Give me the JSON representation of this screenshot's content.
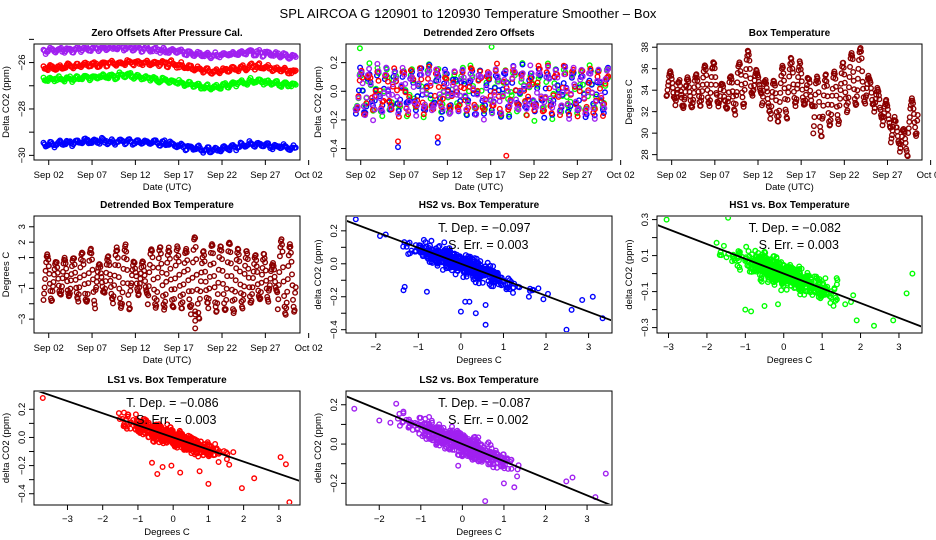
{
  "page": {
    "title": "SPL   AIRCOA G   120901 to 120930   Temperature Smoother – Box"
  },
  "colors": {
    "blue": "#0000ff",
    "red": "#ff0000",
    "green": "#00ff00",
    "purple": "#a020f0",
    "brown": "#8b0000",
    "black": "#000000"
  },
  "chart_data": [
    {
      "id": "zero-offsets",
      "type": "scatter",
      "title": "Zero Offsets After Pressure Cal.",
      "xlabel": "Date (UTC)",
      "ylabel": "Delta CO2 (ppm)",
      "xticks": [
        "Sep 02",
        "Sep 07",
        "Sep 12",
        "Sep 17",
        "Sep 22",
        "Sep 27",
        "Oct 02"
      ],
      "xlim_days": [
        0.3,
        31.0
      ],
      "ylim": [
        -30.2,
        -25.2
      ],
      "yticks": [
        -30,
        -29,
        -28,
        -27,
        -26,
        -25
      ],
      "ytick_labels": [
        "-30",
        "",
        "-28",
        "",
        "-26",
        ""
      ],
      "series": [
        {
          "name": "LS2",
          "color": "purple",
          "level": -25.55,
          "trend": [
            -25.5,
            -25.4,
            -25.35,
            -25.5,
            -25.7,
            -25.55,
            -25.75
          ],
          "noise": 0.12
        },
        {
          "name": "LS1",
          "color": "red",
          "level": -26.2,
          "trend": [
            -26.25,
            -26.1,
            -26.0,
            -26.05,
            -26.4,
            -26.15,
            -26.4
          ],
          "noise": 0.12
        },
        {
          "name": "HS1",
          "color": "green",
          "level": -26.7,
          "trend": [
            -26.75,
            -26.65,
            -26.55,
            -26.8,
            -27.1,
            -26.8,
            -27.0
          ],
          "noise": 0.12
        },
        {
          "name": "HS2",
          "color": "blue",
          "level": -29.5,
          "trend": [
            -29.55,
            -29.4,
            -29.4,
            -29.5,
            -29.8,
            -29.5,
            -29.7
          ],
          "noise": 0.12
        }
      ],
      "x_day_range": [
        1.4,
        30.5
      ]
    },
    {
      "id": "detrended-zero-offsets",
      "type": "scatter",
      "title": "Detrended Zero Offsets",
      "xlabel": "Date (UTC)",
      "ylabel": "Delta CO2 (ppm)",
      "xticks": [
        "Sep 02",
        "Sep 07",
        "Sep 12",
        "Sep 17",
        "Sep 22",
        "Sep 27",
        "Oct 02"
      ],
      "xlim_days": [
        0.3,
        31.0
      ],
      "ylim": [
        -0.48,
        0.33
      ],
      "yticks": [
        -0.4,
        -0.2,
        0.0,
        0.2
      ],
      "ytick_labels": [
        "-0.4",
        "-0.2",
        "0.0",
        "0.2"
      ],
      "series": [
        {
          "name": "HS1",
          "color": "green"
        },
        {
          "name": "HS2",
          "color": "blue"
        },
        {
          "name": "LS1",
          "color": "red"
        },
        {
          "name": "LS2",
          "color": "purple"
        }
      ],
      "amplitude": 0.15,
      "outliers": [
        {
          "day": 18.8,
          "value": -0.45,
          "color": "red"
        },
        {
          "day": 6.3,
          "value": -0.39,
          "color": "blue"
        },
        {
          "day": 6.3,
          "value": -0.35,
          "color": "red"
        },
        {
          "day": 10.9,
          "value": -0.36,
          "color": "blue"
        },
        {
          "day": 10.9,
          "value": -0.32,
          "color": "red"
        },
        {
          "day": 1.9,
          "value": 0.3,
          "color": "green"
        },
        {
          "day": 17.1,
          "value": 0.31,
          "color": "green"
        }
      ],
      "x_day_range": [
        1.4,
        30.5
      ]
    },
    {
      "id": "box-temperature",
      "type": "scatter",
      "title": "Box Temperature",
      "xlabel": "Date (UTC)",
      "ylabel": "Degrees C",
      "xticks": [
        "Sep 02",
        "Sep 07",
        "Sep 12",
        "Sep 17",
        "Sep 22",
        "Sep 27",
        "Oct 02"
      ],
      "xlim_days": [
        0.3,
        31.0
      ],
      "ylim": [
        27.5,
        38.3
      ],
      "yticks": [
        28,
        30,
        32,
        34,
        36,
        38
      ],
      "ytick_labels": [
        "28",
        "30",
        "32",
        "34",
        "36",
        "38"
      ],
      "color": "brown",
      "daily_mean": [
        34.5,
        33.6,
        33.8,
        34.0,
        34.5,
        34.8,
        33.5,
        33.6,
        34.6,
        35.5,
        34.8,
        33.5,
        33.0,
        33.8,
        34.8,
        34.6,
        33.8,
        32.5,
        33.0,
        33.3,
        34.3,
        35.0,
        35.4,
        34.0,
        32.8,
        31.8,
        30.3,
        29.2,
        31.5,
        32.5
      ],
      "daily_amp": [
        1.2,
        1.2,
        1.3,
        1.5,
        1.8,
        1.9,
        1.1,
        1.7,
        2.0,
        2.1,
        1.0,
        1.4,
        2.0,
        2.4,
        2.2,
        1.9,
        1.4,
        2.8,
        2.3,
        2.4,
        2.2,
        2.5,
        2.5,
        1.3,
        1.3,
        1.3,
        1.1,
        1.3,
        1.7,
        1.6
      ],
      "x_day_range": [
        1.4,
        30.5
      ]
    },
    {
      "id": "detrended-box-temperature",
      "type": "scatter",
      "title": "Detrended Box Temperature",
      "xlabel": "Date (UTC)",
      "ylabel": "Degrees C",
      "xticks": [
        "Sep 02",
        "Sep 07",
        "Sep 12",
        "Sep 17",
        "Sep 22",
        "Sep 27",
        "Oct 02"
      ],
      "xlim_days": [
        0.3,
        31.0
      ],
      "ylim": [
        -3.9,
        3.7
      ],
      "yticks": [
        -3,
        -2,
        -1,
        0,
        1,
        2,
        3
      ],
      "ytick_labels": [
        "-3",
        "",
        "-1",
        "",
        "1",
        "2",
        "3"
      ],
      "color": "brown",
      "daily_amp": [
        1.6,
        1.1,
        1.3,
        1.4,
        1.7,
        2.0,
        1.0,
        1.4,
        2.0,
        2.2,
        1.1,
        1.0,
        2.0,
        2.1,
        2.0,
        2.1,
        2.0,
        2.8,
        1.8,
        2.3,
        2.2,
        2.4,
        2.0,
        1.8,
        1.5,
        1.6,
        1.0,
        2.6,
        2.3,
        1.2
      ],
      "outliers": [
        {
          "day": 18.9,
          "value": -2.5
        },
        {
          "day": 18.9,
          "value": -3.1
        },
        {
          "day": 18.9,
          "value": -3.6
        },
        {
          "day": 18.9,
          "value": -2.7
        }
      ],
      "x_day_range": [
        1.4,
        30.5
      ]
    },
    {
      "id": "hs2-vs-box",
      "type": "scatter",
      "title": "HS2 vs. Box Temperature",
      "xlabel": "Degrees C",
      "ylabel": "delta CO2 (ppm)",
      "xlim": [
        -2.7,
        3.55
      ],
      "ylim": [
        -0.42,
        0.29
      ],
      "xticks": [
        -2,
        -1,
        0,
        1,
        2,
        3
      ],
      "xtick_labels": [
        "-2",
        "-1",
        "0",
        "1",
        "2",
        "3"
      ],
      "yticks": [
        -0.4,
        -0.2,
        0.0,
        0.2
      ],
      "ytick_labels": [
        "-0.4",
        "-0.2",
        "0.0",
        "0.2"
      ],
      "ytick_minor": [
        -0.3,
        -0.1,
        0.1
      ],
      "color": "blue",
      "slope": -0.097,
      "intercept": 0.0,
      "noise": 0.055,
      "annotation": {
        "t_dep_label": "T. Dep. =",
        "t_dep_value": "−0.097",
        "s_err_label": "S. Err. =",
        "s_err_value": "0.003"
      },
      "outliers": [
        [
          -2.47,
          0.27
        ],
        [
          -1.35,
          -0.16
        ],
        [
          -1.32,
          -0.14
        ],
        [
          -0.8,
          -0.17
        ],
        [
          0.0,
          -0.29
        ],
        [
          0.1,
          -0.23
        ],
        [
          0.2,
          -0.23
        ],
        [
          0.35,
          -0.3
        ],
        [
          0.58,
          -0.37
        ],
        [
          0.58,
          -0.25
        ],
        [
          2.48,
          -0.4
        ],
        [
          2.6,
          -0.28
        ],
        [
          2.85,
          -0.22
        ],
        [
          3.1,
          -0.2
        ],
        [
          3.33,
          -0.33
        ]
      ]
    },
    {
      "id": "hs1-vs-box",
      "type": "scatter",
      "title": "HS1 vs. Box Temperature",
      "xlabel": "Degrees C",
      "ylabel": "delta CO2 (ppm)",
      "xlim": [
        -3.3,
        3.6
      ],
      "ylim": [
        -0.33,
        0.32
      ],
      "xticks": [
        -3,
        -2,
        -1,
        0,
        1,
        2,
        3
      ],
      "xtick_labels": [
        "-3",
        "-2",
        "-1",
        "0",
        "1",
        "2",
        "3"
      ],
      "yticks": [
        -0.3,
        -0.1,
        0.1,
        0.3
      ],
      "ytick_labels": [
        "-0.3",
        "-0.1",
        "0.1",
        "0.3"
      ],
      "ytick_minor": [
        -0.2,
        0.0,
        0.2
      ],
      "color": "green",
      "slope": -0.082,
      "intercept": 0.0,
      "noise": 0.065,
      "annotation": {
        "t_dep_label": "T. Dep. =",
        "t_dep_value": "−0.082",
        "s_err_label": "S. Err. =",
        "s_err_value": "0.003"
      },
      "outliers": [
        [
          -3.05,
          0.3
        ],
        [
          -1.45,
          0.31
        ],
        [
          -1.0,
          -0.2
        ],
        [
          -0.85,
          -0.21
        ],
        [
          -0.5,
          -0.18
        ],
        [
          -0.15,
          -0.17
        ],
        [
          1.9,
          -0.26
        ],
        [
          2.35,
          -0.29
        ],
        [
          2.85,
          -0.26
        ],
        [
          3.2,
          -0.11
        ],
        [
          3.35,
          0.0
        ]
      ]
    },
    {
      "id": "ls1-vs-box",
      "type": "scatter",
      "title": "LS1 vs. Box Temperature",
      "xlabel": "Degrees C",
      "ylabel": "delta CO2 (ppm)",
      "xlim": [
        -3.95,
        3.6
      ],
      "ylim": [
        -0.48,
        0.33
      ],
      "xticks": [
        -3,
        -2,
        -1,
        0,
        1,
        2,
        3
      ],
      "xtick_labels": [
        "-3",
        "-2",
        "-1",
        "0",
        "1",
        "2",
        "3"
      ],
      "yticks": [
        -0.4,
        -0.2,
        0.0,
        0.2
      ],
      "ytick_labels": [
        "-0.4",
        "-0.2",
        "0.0",
        "0.2"
      ],
      "ytick_minor": [
        -0.3,
        -0.1,
        0.1
      ],
      "color": "red",
      "slope": -0.086,
      "intercept": 0.0,
      "noise": 0.055,
      "annotation": {
        "t_dep_label": "T. Dep. =",
        "t_dep_value": "−0.086",
        "s_err_label": "S. Err. =",
        "s_err_value": "0.003"
      },
      "outliers": [
        [
          -3.7,
          0.28
        ],
        [
          -0.6,
          -0.18
        ],
        [
          -0.45,
          -0.26
        ],
        [
          -0.3,
          -0.21
        ],
        [
          -0.05,
          -0.2
        ],
        [
          0.2,
          -0.25
        ],
        [
          0.75,
          -0.24
        ],
        [
          1.0,
          -0.33
        ],
        [
          1.95,
          -0.36
        ],
        [
          2.3,
          -0.29
        ],
        [
          3.05,
          -0.14
        ],
        [
          3.2,
          -0.19
        ],
        [
          3.3,
          -0.46
        ]
      ]
    },
    {
      "id": "ls2-vs-box",
      "type": "scatter",
      "title": "LS2 vs. Box Temperature",
      "xlabel": "Degrees C",
      "ylabel": "delta CO2 (ppm)",
      "xlim": [
        -2.8,
        3.6
      ],
      "ylim": [
        -0.31,
        0.27
      ],
      "xticks": [
        -2,
        -1,
        0,
        1,
        2,
        3
      ],
      "xtick_labels": [
        "-2",
        "-1",
        "0",
        "1",
        "2",
        "3"
      ],
      "yticks": [
        -0.2,
        0.0,
        0.2
      ],
      "ytick_labels": [
        "-0.2",
        "0.0",
        "0.2"
      ],
      "ytick_minor": [
        -0.1,
        0.1
      ],
      "color": "purple",
      "slope": -0.087,
      "intercept": 0.0,
      "noise": 0.05,
      "annotation": {
        "t_dep_label": "T. Dep. =",
        "t_dep_value": "−0.087",
        "s_err_label": "S. Err. =",
        "s_err_value": "0.002"
      },
      "outliers": [
        [
          -2.6,
          0.18
        ],
        [
          -2.0,
          0.12
        ],
        [
          -0.1,
          -0.11
        ],
        [
          0.55,
          -0.29
        ],
        [
          1.0,
          -0.2
        ],
        [
          1.25,
          -0.22
        ],
        [
          2.5,
          -0.19
        ],
        [
          2.65,
          -0.17
        ],
        [
          3.2,
          -0.27
        ],
        [
          3.45,
          -0.15
        ]
      ]
    }
  ]
}
